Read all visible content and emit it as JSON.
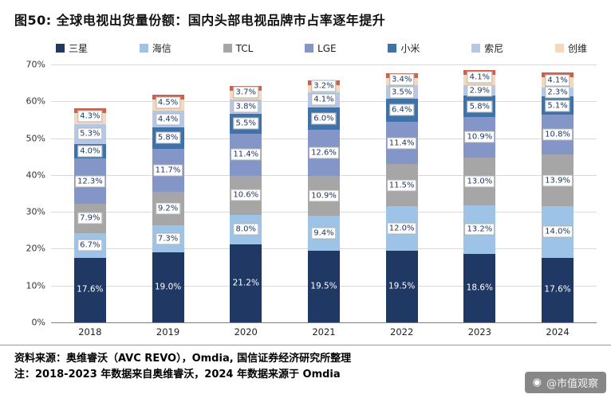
{
  "page": {
    "title": "图50: 全球电视出货量份额：国内头部电视品牌市占率逐年提升",
    "source_line": "资料来源：奥维睿沃（AVC REVO），Omdia, 国信证券经济研究所整理",
    "note_line": "注：2018-2023 年数据来自奥维睿沃，2024 年数据来源于 Omdia",
    "watermark": "@市值观察"
  },
  "chart_data": {
    "type": "bar",
    "stacked": true,
    "title": "全球电视出货量份额",
    "categories": [
      "2018",
      "2019",
      "2020",
      "2021",
      "2022",
      "2023",
      "2024"
    ],
    "series": [
      {
        "name": "三星",
        "color": "#1F3864",
        "label_style": "on-bar",
        "values": [
          17.6,
          19.0,
          21.2,
          19.5,
          19.5,
          18.6,
          17.6
        ]
      },
      {
        "name": "海信",
        "color": "#9DC3E6",
        "values": [
          6.7,
          7.3,
          8.0,
          9.4,
          12.0,
          13.2,
          14.0
        ]
      },
      {
        "name": "TCL",
        "color": "#A6A6A6",
        "values": [
          7.9,
          9.2,
          10.6,
          10.9,
          11.5,
          13.0,
          13.9
        ]
      },
      {
        "name": "LGE",
        "color": "#8496C8",
        "values": [
          12.3,
          11.7,
          11.4,
          12.6,
          11.4,
          10.9,
          10.8
        ]
      },
      {
        "name": "小米",
        "color": "#3F72A8",
        "values": [
          4.0,
          5.8,
          5.5,
          6.0,
          6.4,
          5.8,
          5.1
        ]
      },
      {
        "name": "索尼",
        "color": "#B4C7E7",
        "values": [
          5.3,
          4.4,
          3.8,
          4.1,
          3.5,
          2.9,
          2.3
        ]
      },
      {
        "name": "创维",
        "color": "#F6D9BD",
        "cap_color": "#C9614B",
        "values": [
          4.3,
          4.5,
          3.7,
          3.2,
          3.4,
          4.1,
          4.1
        ]
      }
    ],
    "ylim": [
      0,
      70
    ],
    "y_ticks": [
      "0%",
      "10%",
      "20%",
      "30%",
      "40%",
      "50%",
      "60%",
      "70%"
    ],
    "grid": true,
    "legend_position": "top",
    "xlabel": "",
    "ylabel": ""
  }
}
